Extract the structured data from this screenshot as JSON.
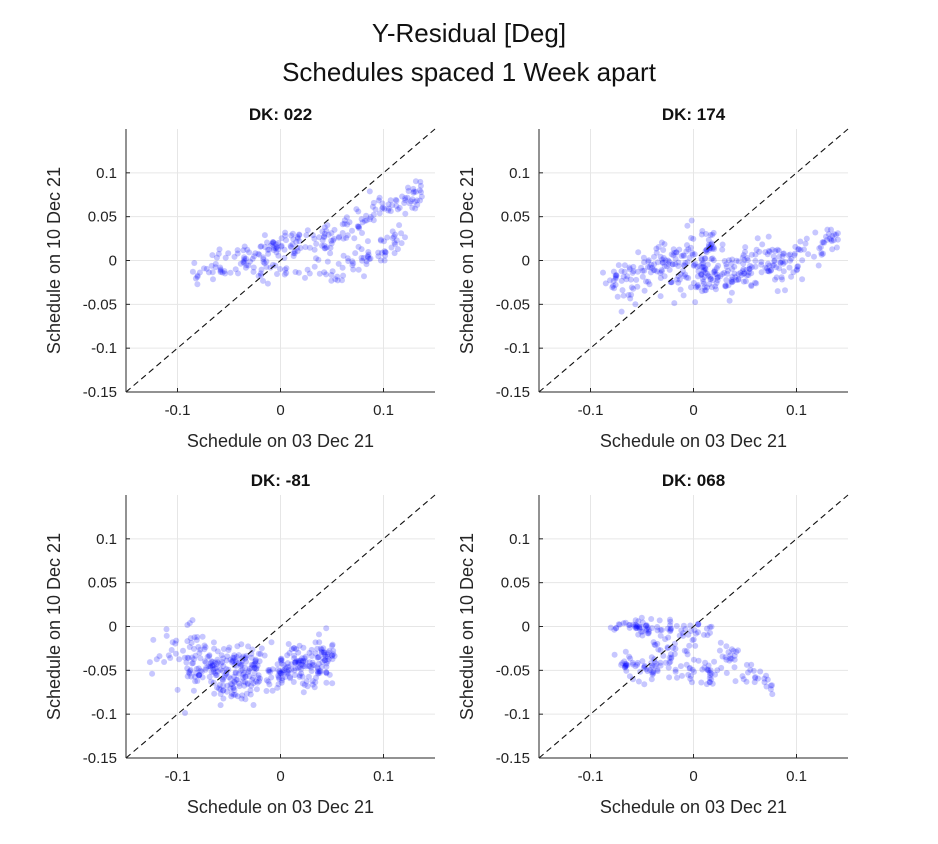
{
  "figure": {
    "title_line1": "Y-Residual [Deg]",
    "title_line2": "Schedules spaced 1 Week apart"
  },
  "chart_data": [
    {
      "type": "scatter",
      "title": "DK: 022",
      "xlabel": "Schedule on 03 Dec 21",
      "ylabel": "Schedule on 10 Dec 21",
      "xlim": [
        -0.15,
        0.15
      ],
      "ylim": [
        -0.15,
        0.15
      ],
      "xticks": [
        "-0.1",
        "0",
        "0.1"
      ],
      "yticks": [
        "-0.15",
        "-0.1",
        "-0.05",
        "0",
        "0.05",
        "0.1"
      ],
      "grid": true,
      "reference_line": "y = x (dashed)",
      "series": [
        {
          "color": "#0000ff",
          "clusters": [
            {
              "x0": -0.09,
              "x1": 0.02,
              "y0": -0.015,
              "y1": 0.02,
              "n": 90,
              "spread": 0.01
            },
            {
              "x0": -0.02,
              "x1": 0.05,
              "y0": 0.015,
              "y1": 0.025,
              "n": 35,
              "spread": 0.006
            },
            {
              "x0": 0.04,
              "x1": 0.14,
              "y0": 0.02,
              "y1": 0.08,
              "n": 95,
              "spread": 0.008
            },
            {
              "x0": 0.05,
              "x1": 0.12,
              "y0": -0.01,
              "y1": 0.025,
              "n": 60,
              "spread": 0.008
            },
            {
              "x0": -0.03,
              "x1": 0.05,
              "y0": -0.01,
              "y1": -0.01,
              "n": 30,
              "spread": 0.008
            }
          ]
        }
      ]
    },
    {
      "type": "scatter",
      "title": "DK: 174",
      "xlabel": "Schedule on 03 Dec 21",
      "ylabel": "Schedule on 10 Dec 21",
      "xlim": [
        -0.15,
        0.15
      ],
      "ylim": [
        -0.15,
        0.15
      ],
      "xticks": [
        "-0.1",
        "0",
        "0.1"
      ],
      "yticks": [
        "-0.15",
        "-0.1",
        "-0.05",
        "0",
        "0.05",
        "0.1"
      ],
      "grid": true,
      "reference_line": "y = x (dashed)",
      "series": [
        {
          "color": "#0000ff",
          "clusters": [
            {
              "x0": -0.08,
              "x1": 0.02,
              "y0": -0.03,
              "y1": 0.015,
              "n": 170,
              "spread": 0.014
            },
            {
              "x0": 0.0,
              "x1": 0.08,
              "y0": -0.02,
              "y1": 0.005,
              "n": 110,
              "spread": 0.013
            },
            {
              "x0": 0.07,
              "x1": 0.14,
              "y0": -0.01,
              "y1": 0.025,
              "n": 60,
              "spread": 0.008
            },
            {
              "x0": -0.02,
              "x1": 0.1,
              "y0": -0.03,
              "y1": -0.01,
              "n": 50,
              "spread": 0.01
            }
          ]
        }
      ]
    },
    {
      "type": "scatter",
      "title": "DK: -81",
      "xlabel": "Schedule on 03 Dec 21",
      "ylabel": "Schedule on 10 Dec 21",
      "xlim": [
        -0.15,
        0.15
      ],
      "ylim": [
        -0.15,
        0.15
      ],
      "xticks": [
        "-0.1",
        "0",
        "0.1"
      ],
      "yticks": [
        "-0.15",
        "-0.1",
        "-0.05",
        "0",
        "0.05",
        "0.1"
      ],
      "grid": true,
      "reference_line": "y = x (dashed)",
      "series": [
        {
          "color": "#0000ff",
          "clusters": [
            {
              "x0": -0.13,
              "x1": -0.08,
              "y0": -0.04,
              "y1": -0.01,
              "n": 30,
              "spread": 0.012
            },
            {
              "x0": -0.09,
              "x1": -0.02,
              "y0": -0.05,
              "y1": -0.04,
              "n": 150,
              "spread": 0.013
            },
            {
              "x0": -0.06,
              "x1": 0.05,
              "y0": -0.07,
              "y1": -0.04,
              "n": 170,
              "spread": 0.011
            },
            {
              "x0": 0.0,
              "x1": 0.05,
              "y0": -0.05,
              "y1": -0.03,
              "n": 60,
              "spread": 0.01
            }
          ]
        }
      ]
    },
    {
      "type": "scatter",
      "title": "DK: 068",
      "xlabel": "Schedule on 03 Dec 21",
      "ylabel": "Schedule on 10 Dec 21",
      "xlim": [
        -0.15,
        0.15
      ],
      "ylim": [
        -0.15,
        0.15
      ],
      "xticks": [
        "-0.1",
        "0",
        "0.1"
      ],
      "yticks": [
        "-0.15",
        "-0.1",
        "-0.05",
        "0",
        "0.05",
        "0.1"
      ],
      "grid": true,
      "reference_line": "y = x (dashed)",
      "series": [
        {
          "color": "#0000ff",
          "clusters": [
            {
              "x0": -0.08,
              "x1": 0.02,
              "y0": 0.0,
              "y1": -0.005,
              "n": 80,
              "spread": 0.005
            },
            {
              "x0": -0.07,
              "x1": 0.02,
              "y0": -0.045,
              "y1": -0.055,
              "n": 90,
              "spread": 0.008
            },
            {
              "x0": -0.04,
              "x1": 0.0,
              "y0": -0.02,
              "y1": -0.03,
              "n": 25,
              "spread": 0.008
            },
            {
              "x0": 0.02,
              "x1": 0.08,
              "y0": -0.025,
              "y1": -0.075,
              "n": 45,
              "spread": 0.008
            }
          ]
        }
      ]
    }
  ]
}
